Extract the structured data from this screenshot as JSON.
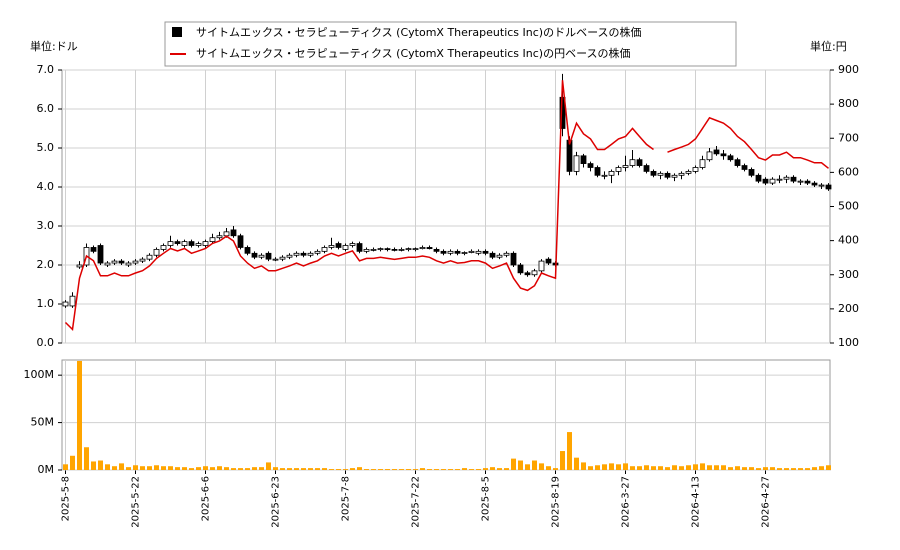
{
  "chart_data": [
    {
      "type": "candlestick",
      "legend": "top",
      "ylabel": "単位:ドル",
      "y2label": "単位:円",
      "grid": true,
      "ylim": [
        0,
        7
      ],
      "yticks": [
        {
          "value": 0,
          "label": "0.0"
        },
        {
          "value": 1,
          "label": "1.0"
        },
        {
          "value": 2,
          "label": "2.0"
        },
        {
          "value": 3,
          "label": "3.0"
        },
        {
          "value": 4,
          "label": "4.0"
        },
        {
          "value": 5,
          "label": "5.0"
        },
        {
          "value": 6,
          "label": "6.0"
        },
        {
          "value": 7,
          "label": "7.0"
        }
      ],
      "y2lim": [
        100,
        900
      ],
      "y2ticks": [
        100,
        200,
        300,
        400,
        500,
        600,
        700,
        800,
        900
      ],
      "series": [
        {
          "name": "サイトムエックス・セラピューティクス (CytomX Therapeutics Inc)のドルベースの株価",
          "color": "#000000",
          "open": [
            0.95,
            0.95,
            1.95,
            2.0,
            2.45,
            2.5,
            2.0,
            2.05,
            2.1,
            2.0,
            2.05,
            2.1,
            2.15,
            2.25,
            2.4,
            2.5,
            2.6,
            2.5,
            2.6,
            2.5,
            2.5,
            2.6,
            2.7,
            2.75,
            2.9,
            2.75,
            2.45,
            2.3,
            2.2,
            2.3,
            2.15,
            2.15,
            2.2,
            2.25,
            2.3,
            2.25,
            2.3,
            2.35,
            2.45,
            2.55,
            2.4,
            2.5,
            2.55,
            2.35,
            2.4,
            2.4,
            2.42,
            2.4,
            2.38,
            2.4,
            2.4,
            2.42,
            2.45,
            2.4,
            2.35,
            2.3,
            2.35,
            2.3,
            2.32,
            2.3,
            2.35,
            2.3,
            2.2,
            2.25,
            2.3,
            2.0,
            1.8,
            1.75,
            1.85,
            2.15,
            2.05,
            6.3,
            5.2,
            4.4,
            4.8,
            4.6,
            4.5,
            4.3,
            4.3,
            4.4,
            4.5,
            4.55,
            4.7,
            4.55,
            4.4,
            4.3,
            4.35,
            4.25,
            4.3,
            4.35,
            4.4,
            4.5,
            4.7,
            4.95,
            4.85,
            4.8,
            4.7,
            4.55,
            4.45,
            4.3,
            4.2,
            4.1,
            4.2,
            4.2,
            4.25,
            4.15,
            4.15,
            4.1,
            4.05,
            4.05
          ],
          "high": [
            1.1,
            1.3,
            2.1,
            2.55,
            2.5,
            2.55,
            2.1,
            2.15,
            2.15,
            2.1,
            2.15,
            2.2,
            2.3,
            2.45,
            2.55,
            2.75,
            2.65,
            2.65,
            2.65,
            2.6,
            2.65,
            2.8,
            2.85,
            2.95,
            3.0,
            2.8,
            2.5,
            2.35,
            2.3,
            2.35,
            2.2,
            2.25,
            2.3,
            2.35,
            2.35,
            2.35,
            2.4,
            2.5,
            2.7,
            2.6,
            2.55,
            2.6,
            2.6,
            2.45,
            2.45,
            2.45,
            2.45,
            2.45,
            2.45,
            2.45,
            2.45,
            2.5,
            2.5,
            2.45,
            2.4,
            2.4,
            2.4,
            2.35,
            2.4,
            2.4,
            2.4,
            2.35,
            2.3,
            2.35,
            2.35,
            2.05,
            1.85,
            1.9,
            2.15,
            2.2,
            2.1,
            6.9,
            5.3,
            4.9,
            4.85,
            4.65,
            4.55,
            4.4,
            4.45,
            4.55,
            4.8,
            4.95,
            4.75,
            4.6,
            4.45,
            4.4,
            4.4,
            4.35,
            4.4,
            4.45,
            4.55,
            4.8,
            5.0,
            5.05,
            4.95,
            4.85,
            4.75,
            4.6,
            4.5,
            4.35,
            4.25,
            4.25,
            4.3,
            4.3,
            4.3,
            4.2,
            4.2,
            4.15,
            4.1,
            4.1
          ],
          "low": [
            0.9,
            0.9,
            1.9,
            1.95,
            2.3,
            2.0,
            1.95,
            2.0,
            2.0,
            1.95,
            2.0,
            2.05,
            2.1,
            2.2,
            2.35,
            2.45,
            2.5,
            2.45,
            2.45,
            2.45,
            2.45,
            2.55,
            2.65,
            2.7,
            2.7,
            2.4,
            2.25,
            2.15,
            2.15,
            2.1,
            2.1,
            2.1,
            2.15,
            2.2,
            2.2,
            2.2,
            2.25,
            2.3,
            2.4,
            2.4,
            2.35,
            2.45,
            2.3,
            2.3,
            2.35,
            2.35,
            2.35,
            2.35,
            2.35,
            2.35,
            2.35,
            2.4,
            2.4,
            2.3,
            2.25,
            2.25,
            2.25,
            2.25,
            2.3,
            2.25,
            2.25,
            2.15,
            2.15,
            2.2,
            1.95,
            1.75,
            1.7,
            1.7,
            1.8,
            2.0,
            1.95,
            5.3,
            4.3,
            4.3,
            4.5,
            4.4,
            4.25,
            4.2,
            4.1,
            4.3,
            4.4,
            4.5,
            4.5,
            4.35,
            4.25,
            4.2,
            4.2,
            4.15,
            4.2,
            4.3,
            4.35,
            4.45,
            4.65,
            4.8,
            4.7,
            4.65,
            4.5,
            4.4,
            4.25,
            4.1,
            4.05,
            4.05,
            4.1,
            4.1,
            4.1,
            4.05,
            4.05,
            4.0,
            3.95,
            3.9
          ],
          "close": [
            1.05,
            1.2,
            2.0,
            2.45,
            2.35,
            2.05,
            2.05,
            2.1,
            2.05,
            2.05,
            2.1,
            2.15,
            2.25,
            2.4,
            2.5,
            2.6,
            2.55,
            2.6,
            2.5,
            2.55,
            2.6,
            2.7,
            2.75,
            2.85,
            2.75,
            2.45,
            2.3,
            2.2,
            2.25,
            2.15,
            2.15,
            2.2,
            2.25,
            2.3,
            2.25,
            2.3,
            2.35,
            2.45,
            2.5,
            2.45,
            2.5,
            2.55,
            2.35,
            2.4,
            2.4,
            2.42,
            2.4,
            2.38,
            2.4,
            2.42,
            2.42,
            2.45,
            2.42,
            2.35,
            2.3,
            2.35,
            2.3,
            2.32,
            2.35,
            2.35,
            2.3,
            2.2,
            2.25,
            2.3,
            2.0,
            1.8,
            1.75,
            1.85,
            2.1,
            2.05,
            2.0,
            5.5,
            4.4,
            4.8,
            4.6,
            4.5,
            4.3,
            4.3,
            4.4,
            4.5,
            4.55,
            4.7,
            4.55,
            4.4,
            4.3,
            4.35,
            4.25,
            4.3,
            4.35,
            4.4,
            4.5,
            4.7,
            4.9,
            4.85,
            4.8,
            4.7,
            4.55,
            4.45,
            4.3,
            4.15,
            4.1,
            4.2,
            4.2,
            4.25,
            4.15,
            4.15,
            4.1,
            4.05,
            4.05,
            3.95
          ]
        },
        {
          "name": "サイトムエックス・セラピューティクス (CytomX Therapeutics Inc)の円ベースの株価",
          "color": "#dd0000",
          "axis": "y2",
          "values": [
            160,
            140,
            290,
            355,
            341,
            297,
            297,
            305,
            297,
            297,
            305,
            312,
            326,
            348,
            363,
            377,
            370,
            377,
            363,
            370,
            377,
            392,
            399,
            413,
            399,
            355,
            334,
            319,
            326,
            312,
            312,
            319,
            326,
            334,
            326,
            334,
            341,
            355,
            363,
            355,
            363,
            370,
            341,
            348,
            348,
            351,
            348,
            345,
            348,
            351,
            351,
            355,
            351,
            341,
            334,
            341,
            334,
            336,
            341,
            341,
            334,
            319,
            326,
            334,
            290,
            261,
            254,
            268,
            305,
            297,
            290,
            870,
            682,
            744,
            713,
            698,
            667,
            667,
            682,
            698,
            705,
            729,
            705,
            682,
            667,
            null,
            659,
            667,
            674,
            682,
            698,
            729,
            760,
            752,
            744,
            729,
            705,
            690,
            667,
            643,
            636,
            651,
            651,
            659,
            643,
            643,
            636,
            628,
            628,
            612
          ]
        }
      ]
    },
    {
      "type": "bar",
      "color": "#ffa500",
      "grid": true,
      "ylim": [
        0,
        116000000
      ],
      "yticks": [
        {
          "value": 0,
          "label": "0M"
        },
        {
          "value": 50000000,
          "label": "50M"
        },
        {
          "value": 100000000,
          "label": "100M"
        }
      ],
      "categories": [
        "2025-5-8",
        null,
        null,
        null,
        null,
        null,
        null,
        null,
        null,
        null,
        "2025-5-22",
        null,
        null,
        null,
        null,
        null,
        null,
        null,
        null,
        null,
        "2025-6-6",
        null,
        null,
        null,
        null,
        null,
        null,
        null,
        null,
        null,
        "2025-6-23",
        null,
        null,
        null,
        null,
        null,
        null,
        null,
        null,
        null,
        "2025-7-8",
        null,
        null,
        null,
        null,
        null,
        null,
        null,
        null,
        null,
        "2025-7-22",
        null,
        null,
        null,
        null,
        null,
        null,
        null,
        null,
        null,
        "2025-8-5",
        null,
        null,
        null,
        null,
        null,
        null,
        null,
        null,
        null,
        "2025-8-19",
        null,
        null,
        null,
        null,
        null,
        null,
        null,
        null,
        null,
        "2026-3-27",
        null,
        null,
        null,
        null,
        null,
        null,
        null,
        null,
        null,
        "2026-4-13",
        null,
        null,
        null,
        null,
        null,
        null,
        null,
        null,
        null,
        "2026-4-27",
        null,
        null,
        null,
        null,
        null,
        null,
        null,
        null,
        null
      ],
      "values": [
        6000000,
        15000000,
        115000000,
        24000000,
        9000000,
        10000000,
        6000000,
        4000000,
        7000000,
        3000000,
        5000000,
        4000000,
        4000000,
        5000000,
        4000000,
        4000000,
        3000000,
        3000000,
        2000000,
        3000000,
        4000000,
        3000000,
        4000000,
        3000000,
        2000000,
        2000000,
        2000000,
        3000000,
        3000000,
        8000000,
        3000000,
        2000000,
        2000000,
        2000000,
        2000000,
        2000000,
        2000000,
        2000000,
        1000000,
        1000000,
        1000000,
        2000000,
        3000000,
        1000000,
        1000000,
        1000000,
        1000000,
        1000000,
        1000000,
        1000000,
        1000000,
        2000000,
        1000000,
        1000000,
        1000000,
        1000000,
        1000000,
        2000000,
        1000000,
        1000000,
        2000000,
        3000000,
        2000000,
        2000000,
        12000000,
        10000000,
        6000000,
        10000000,
        7000000,
        4000000,
        2000000,
        20000000,
        40000000,
        13000000,
        8000000,
        4000000,
        5000000,
        6000000,
        7000000,
        6000000,
        7000000,
        4000000,
        4000000,
        5000000,
        4000000,
        4000000,
        3000000,
        5000000,
        4000000,
        5000000,
        6000000,
        7000000,
        5000000,
        5000000,
        5000000,
        3000000,
        4000000,
        3000000,
        3000000,
        2000000,
        3000000,
        3000000,
        2000000,
        2000000,
        2000000,
        2000000,
        2000000,
        3000000,
        4000000,
        5000000
      ]
    }
  ]
}
